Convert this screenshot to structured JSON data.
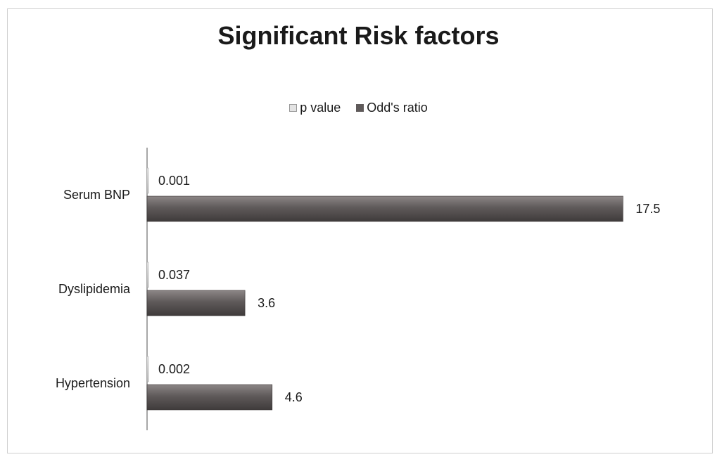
{
  "chart_data": {
    "type": "bar",
    "orientation": "horizontal",
    "title": "Significant Risk factors",
    "categories": [
      "Hypertension",
      "Dyslipidemia",
      "Serum BNP"
    ],
    "series": [
      {
        "name": "p value",
        "values": [
          0.002,
          0.037,
          0.001
        ],
        "labels": [
          "0.002",
          "0.037",
          "0.001"
        ],
        "color": "#e3e3e3"
      },
      {
        "name": "Odd's ratio",
        "values": [
          4.6,
          3.6,
          17.5
        ],
        "labels": [
          "4.6",
          "3.6",
          "17.5"
        ],
        "color": "#5f5a5a"
      }
    ],
    "xlim": [
      0,
      18
    ],
    "grid": false,
    "legend_position": "top-center"
  }
}
